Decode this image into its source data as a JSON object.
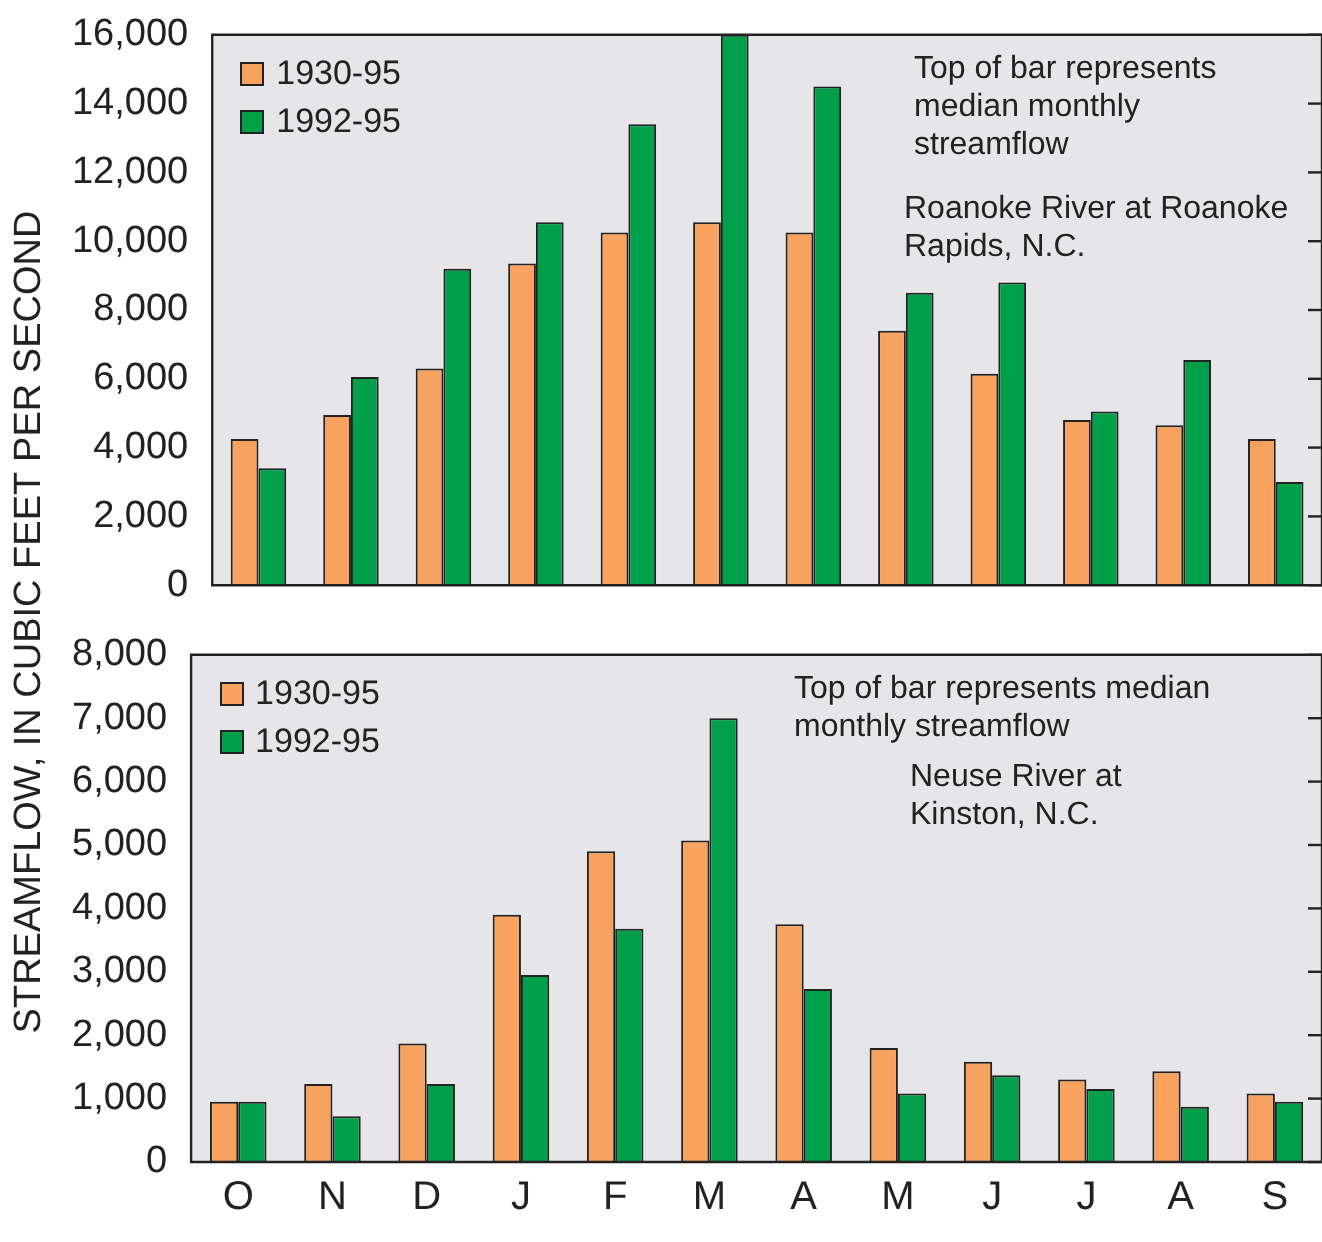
{
  "chart_data": [
    {
      "type": "bar",
      "ylabel": "STREAMFLOW, IN CUBIC FEET PER SECOND",
      "categories": [
        null,
        null,
        null,
        null,
        null,
        null,
        null,
        null,
        null,
        null,
        null,
        null
      ],
      "series": [
        {
          "name": "1930-95",
          "color": "#f7a35f",
          "values": [
            4250,
            4950,
            6300,
            9350,
            10250,
            10550,
            10250,
            7400,
            6150,
            4800,
            4650,
            4250
          ]
        },
        {
          "name": "1992-95",
          "color": "#00a04b",
          "values": [
            3400,
            6050,
            9200,
            10550,
            13400,
            16000,
            14500,
            8500,
            8800,
            5050,
            6550,
            3000
          ]
        }
      ],
      "ylim": [
        0,
        16000
      ],
      "yticks": [
        0,
        {
          "value": 2000,
          "label": "2,000"
        },
        {
          "value": 4000,
          "label": "4,000"
        },
        {
          "value": 6000,
          "label": "6,000"
        },
        {
          "value": 8000,
          "label": "8,000"
        },
        {
          "value": 10000,
          "label": "10,000"
        },
        {
          "value": 12000,
          "label": "12,000"
        },
        {
          "value": 14000,
          "label": "14,000"
        },
        {
          "value": 16000,
          "label": "16,000"
        }
      ],
      "tick_labels": "y",
      "grid": false,
      "legend": "top left",
      "annotations": [
        "Top of bar represents median monthly streamflow",
        "Roanoke River at Roanoke Rapids, N.C."
      ]
    },
    {
      "type": "bar",
      "categories": [
        "O",
        "N",
        "D",
        "J",
        "F",
        "M",
        "A",
        "M",
        "J",
        "J",
        "A",
        "S"
      ],
      "series": [
        {
          "name": "1930-95",
          "color": "#f7a35f",
          "values": [
            950,
            1230,
            1870,
            3900,
            4900,
            5070,
            3750,
            1800,
            1580,
            1300,
            1430,
            1080
          ]
        },
        {
          "name": "1992-95",
          "color": "#00a04b",
          "values": [
            950,
            720,
            1230,
            2950,
            3680,
            7000,
            2730,
            1080,
            1370,
            1150,
            870,
            950
          ]
        }
      ],
      "ylim": [
        0,
        8000
      ],
      "yticks": [
        0,
        {
          "value": 1000,
          "label": "1,000"
        },
        {
          "value": 2000,
          "label": "2,000"
        },
        {
          "value": 3000,
          "label": "3,000"
        },
        {
          "value": 4000,
          "label": "4,000"
        },
        {
          "value": 5000,
          "label": "5,000"
        },
        {
          "value": 6000,
          "label": "6,000"
        },
        {
          "value": 7000,
          "label": "7,000"
        },
        {
          "value": 8000,
          "label": "8,000"
        }
      ],
      "grid": false,
      "legend": "top left",
      "annotations": [
        "Top of bar represents median monthly streamflow",
        "Neuse River at Kinston, N.C."
      ]
    }
  ]
}
